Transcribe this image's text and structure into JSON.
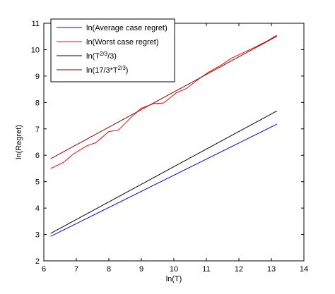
{
  "chart_data": {
    "type": "line",
    "title": "",
    "xlabel": "ln(T)",
    "ylabel": "ln(Regret)",
    "xlim": [
      6,
      14
    ],
    "ylim": [
      2,
      11
    ],
    "xticks": [
      6,
      7,
      8,
      9,
      10,
      11,
      12,
      13,
      14
    ],
    "yticks": [
      2,
      3,
      4,
      5,
      6,
      7,
      8,
      9,
      10,
      11
    ],
    "grid": false,
    "legend_position": "top-left",
    "series": [
      {
        "name": "ln(Average case regret)",
        "color": "#0000ff",
        "x": [
          6.21,
          13.17
        ],
        "y": [
          2.93,
          7.18
        ]
      },
      {
        "name": "ln(Worst case regret)",
        "color": "#ff0000",
        "x": [
          6.21,
          6.6,
          6.91,
          7.31,
          7.6,
          8.0,
          8.29,
          8.7,
          8.99,
          9.39,
          9.68,
          10.09,
          10.37,
          10.78,
          11.07,
          11.47,
          11.76,
          12.16,
          12.45,
          12.86,
          13.17
        ],
        "y": [
          5.5,
          5.73,
          6.05,
          6.35,
          6.48,
          6.9,
          6.95,
          7.45,
          7.78,
          7.96,
          7.98,
          8.38,
          8.52,
          8.9,
          9.15,
          9.43,
          9.67,
          9.9,
          10.07,
          10.32,
          10.55
        ]
      },
      {
        "name": "ln(T^{2/3}/3)",
        "color": "#000000",
        "x": [
          6.21,
          13.17
        ],
        "y": [
          3.04,
          7.68
        ]
      },
      {
        "name": "ln(17/3*T^{2/3})",
        "color": "#8b0000",
        "x": [
          6.21,
          13.17
        ],
        "y": [
          5.87,
          10.51
        ]
      }
    ]
  }
}
